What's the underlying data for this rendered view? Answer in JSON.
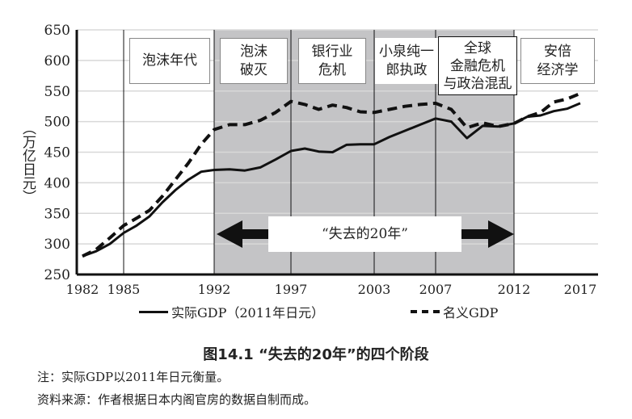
{
  "chart_data": {
    "type": "line",
    "title": "图14.1 “失去的20年”的四个阶段",
    "ylabel": "（万亿日元）",
    "xlabel": "",
    "ylim": [
      250,
      650
    ],
    "yticks": [
      250,
      300,
      350,
      400,
      450,
      500,
      550,
      600,
      650
    ],
    "xticks": [
      "1982",
      "1985",
      "1992",
      "1997",
      "2003",
      "2007",
      "2012",
      "2017"
    ],
    "grid": true,
    "legend_position": "bottom",
    "x": [
      1982,
      1983,
      1984,
      1985,
      1986,
      1987,
      1988,
      1989,
      1990,
      1991,
      1992,
      1993,
      1994,
      1995,
      1996,
      1997,
      1998,
      1999,
      2000,
      2001,
      2002,
      2003,
      2004,
      2005,
      2006,
      2007,
      2008,
      2009,
      2010,
      2011,
      2012,
      2013,
      2014,
      2015,
      2016,
      2017
    ],
    "series": [
      {
        "name": "实际GDP（2011年日元）",
        "style": "solid",
        "values": [
          280,
          288,
          300,
          318,
          330,
          345,
          368,
          388,
          405,
          418,
          421,
          422,
          420,
          425,
          438,
          452,
          456,
          451,
          450,
          462,
          463,
          463,
          475,
          485,
          495,
          505,
          500,
          473,
          493,
          492,
          497,
          508,
          510,
          517,
          521,
          530
        ]
      },
      {
        "name": "名义GDP",
        "style": "dashed",
        "values": [
          280,
          291,
          310,
          330,
          342,
          355,
          378,
          405,
          432,
          463,
          487,
          495,
          495,
          502,
          515,
          533,
          528,
          520,
          527,
          523,
          516,
          515,
          520,
          525,
          528,
          530,
          520,
          490,
          498,
          492,
          497,
          508,
          515,
          532,
          537,
          546
        ]
      }
    ],
    "shaded_range": [
      "1992",
      "2012"
    ],
    "periods": [
      {
        "label": "泡沫年代"
      },
      {
        "label": "泡沫\n破灭"
      },
      {
        "label": "银行业\n危机"
      },
      {
        "label": "小泉纯一\n郎执政"
      },
      {
        "label": "全球\n金融危机\n与政治混乱"
      },
      {
        "label": "安倍\n经济学"
      }
    ],
    "annotation": "“失去的20年”"
  },
  "notes": {
    "note": "注：实际GDP以2011年日元衡量。",
    "source": "资料来源：作者根据日本内阁官房的数据自制而成。"
  }
}
